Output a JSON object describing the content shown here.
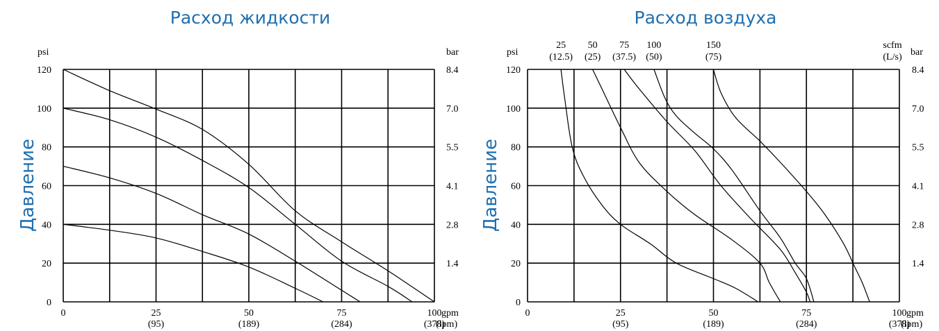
{
  "chart_data": [
    {
      "type": "line",
      "title": "Расход жидкости",
      "ylabel": "Давление",
      "left_unit": "psi",
      "right_unit": "bar",
      "bottom_unit": "gpm",
      "bottom_unit2": "(lpm)",
      "xlim": [
        0,
        100
      ],
      "ylim": [
        0,
        120
      ],
      "grid": true,
      "x_ticks": [
        {
          "v": 0,
          "label": "0",
          "sub": ""
        },
        {
          "v": 25,
          "label": "25",
          "sub": "(95)"
        },
        {
          "v": 50,
          "label": "50",
          "sub": "(189)"
        },
        {
          "v": 75,
          "label": "75",
          "sub": "(284)"
        },
        {
          "v": 100,
          "label": "100",
          "sub": "(378)"
        }
      ],
      "y_ticks": [
        {
          "v": 0,
          "label": "0",
          "right": ""
        },
        {
          "v": 20,
          "label": "20",
          "right": "1.4"
        },
        {
          "v": 40,
          "label": "40",
          "right": "2.8"
        },
        {
          "v": 60,
          "label": "60",
          "right": "4.1"
        },
        {
          "v": 80,
          "label": "80",
          "right": "5.5"
        },
        {
          "v": 100,
          "label": "100",
          "right": "7.0"
        },
        {
          "v": 120,
          "label": "120",
          "right": "8.4"
        }
      ],
      "series": [
        {
          "values": [
            [
              0,
              120
            ],
            [
              12.5,
              109
            ],
            [
              25,
              99.5
            ],
            [
              37.5,
              89
            ],
            [
              50,
              71
            ],
            [
              62.5,
              47
            ],
            [
              75,
              31
            ],
            [
              87.5,
              16
            ],
            [
              100,
              0
            ]
          ]
        },
        {
          "values": [
            [
              0,
              100
            ],
            [
              12.5,
              94
            ],
            [
              25,
              85
            ],
            [
              37.5,
              73
            ],
            [
              50,
              59
            ],
            [
              62.5,
              40
            ],
            [
              75,
              21
            ],
            [
              87.5,
              8
            ],
            [
              94,
              0
            ]
          ]
        },
        {
          "values": [
            [
              0,
              70
            ],
            [
              12.5,
              64
            ],
            [
              25,
              56
            ],
            [
              37.5,
              45
            ],
            [
              50,
              35
            ],
            [
              62.5,
              21
            ],
            [
              75,
              6
            ],
            [
              80,
              0
            ]
          ]
        },
        {
          "values": [
            [
              0,
              40
            ],
            [
              12.5,
              37
            ],
            [
              25,
              33
            ],
            [
              37.5,
              26
            ],
            [
              50,
              18
            ],
            [
              62.5,
              7
            ],
            [
              70,
              0
            ]
          ]
        }
      ]
    },
    {
      "type": "line",
      "title": "Расход воздуха",
      "ylabel": "Давление",
      "left_unit": "psi",
      "right_unit": "bar",
      "bottom_unit": "gpm",
      "bottom_unit2": "(lpm)",
      "top_unit": "scfm",
      "top_unit2": "(L/s)",
      "xlim": [
        0,
        100
      ],
      "ylim": [
        0,
        120
      ],
      "grid": true,
      "x_ticks": [
        {
          "v": 0,
          "label": "0",
          "sub": ""
        },
        {
          "v": 25,
          "label": "25",
          "sub": "(95)"
        },
        {
          "v": 50,
          "label": "50",
          "sub": "(189)"
        },
        {
          "v": 75,
          "label": "75",
          "sub": "(284)"
        },
        {
          "v": 100,
          "label": "100",
          "sub": "(378)"
        }
      ],
      "y_ticks": [
        {
          "v": 0,
          "label": "0",
          "right": ""
        },
        {
          "v": 20,
          "label": "20",
          "right": "1.4"
        },
        {
          "v": 40,
          "label": "40",
          "right": "2.8"
        },
        {
          "v": 60,
          "label": "60",
          "right": "4.1"
        },
        {
          "v": 80,
          "label": "80",
          "right": "5.5"
        },
        {
          "v": 100,
          "label": "100",
          "right": "7.0"
        },
        {
          "v": 120,
          "label": "120",
          "right": "8.4"
        }
      ],
      "top_labels": [
        {
          "at": 9,
          "label": "25",
          "sub": "(12.5)"
        },
        {
          "at": 17.5,
          "label": "50",
          "sub": "(25)"
        },
        {
          "at": 26,
          "label": "75",
          "sub": "(37.5)"
        },
        {
          "at": 34,
          "label": "100",
          "sub": "(50)"
        },
        {
          "at": 50,
          "label": "150",
          "sub": "(75)"
        }
      ],
      "series": [
        {
          "name": "25",
          "values": [
            [
              9,
              120
            ],
            [
              10,
              105
            ],
            [
              12,
              80
            ],
            [
              15,
              65
            ],
            [
              20,
              50
            ],
            [
              25,
              40
            ],
            [
              33,
              30
            ],
            [
              40,
              20
            ],
            [
              50,
              12
            ],
            [
              56,
              7
            ],
            [
              62,
              0
            ]
          ]
        },
        {
          "name": "50",
          "values": [
            [
              17.5,
              120
            ],
            [
              20,
              110
            ],
            [
              25,
              90
            ],
            [
              30,
              72
            ],
            [
              37.5,
              57
            ],
            [
              45,
              45
            ],
            [
              55,
              32
            ],
            [
              62.5,
              20
            ],
            [
              65,
              10
            ],
            [
              68,
              0
            ]
          ]
        },
        {
          "name": "75",
          "values": [
            [
              26,
              120
            ],
            [
              30,
              110
            ],
            [
              37.5,
              93
            ],
            [
              45,
              78
            ],
            [
              52,
              60
            ],
            [
              60,
              43
            ],
            [
              68,
              27
            ],
            [
              72,
              15
            ],
            [
              75,
              5
            ],
            [
              76,
              0
            ]
          ]
        },
        {
          "name": "100",
          "values": [
            [
              34,
              120
            ],
            [
              37,
              105
            ],
            [
              40,
              96
            ],
            [
              45,
              87
            ],
            [
              50,
              79
            ],
            [
              55,
              68
            ],
            [
              62.5,
              47
            ],
            [
              68,
              33
            ],
            [
              72,
              20
            ],
            [
              75,
              12
            ],
            [
              77,
              0
            ]
          ]
        },
        {
          "name": "150",
          "values": [
            [
              50,
              120
            ],
            [
              52,
              108
            ],
            [
              56,
              95
            ],
            [
              62.5,
              83
            ],
            [
              68,
              72
            ],
            [
              75,
              57
            ],
            [
              80,
              45
            ],
            [
              85,
              30
            ],
            [
              88,
              18
            ],
            [
              90,
              10
            ],
            [
              92,
              0
            ]
          ]
        }
      ]
    }
  ]
}
